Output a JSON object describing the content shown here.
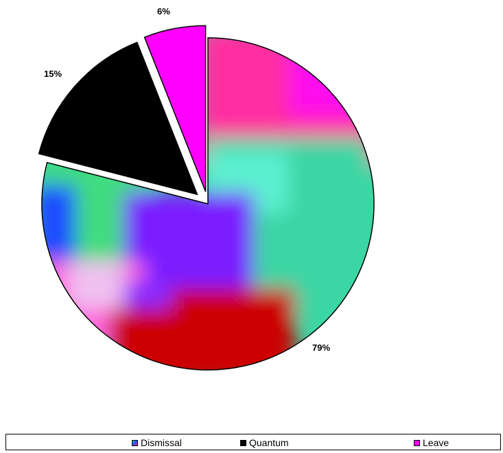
{
  "chart_data": {
    "type": "pie",
    "categories": [
      "Dismissal",
      "Quantum",
      "Leave"
    ],
    "values": [
      79,
      15,
      6
    ],
    "labels": [
      "79%",
      "15%",
      "6%"
    ],
    "exploded": [
      false,
      true,
      true
    ],
    "colors": {
      "Dismissal": "multicolor gradient",
      "Quantum": "#000000",
      "Leave": "#ff00ff"
    },
    "legend_position": "bottom"
  },
  "legend": {
    "items": [
      {
        "label": "Dismissal",
        "color": "#3a5fcd"
      },
      {
        "label": "Quantum",
        "color": "#000000"
      },
      {
        "label": "Leave",
        "color": "#ff00ff"
      }
    ]
  }
}
